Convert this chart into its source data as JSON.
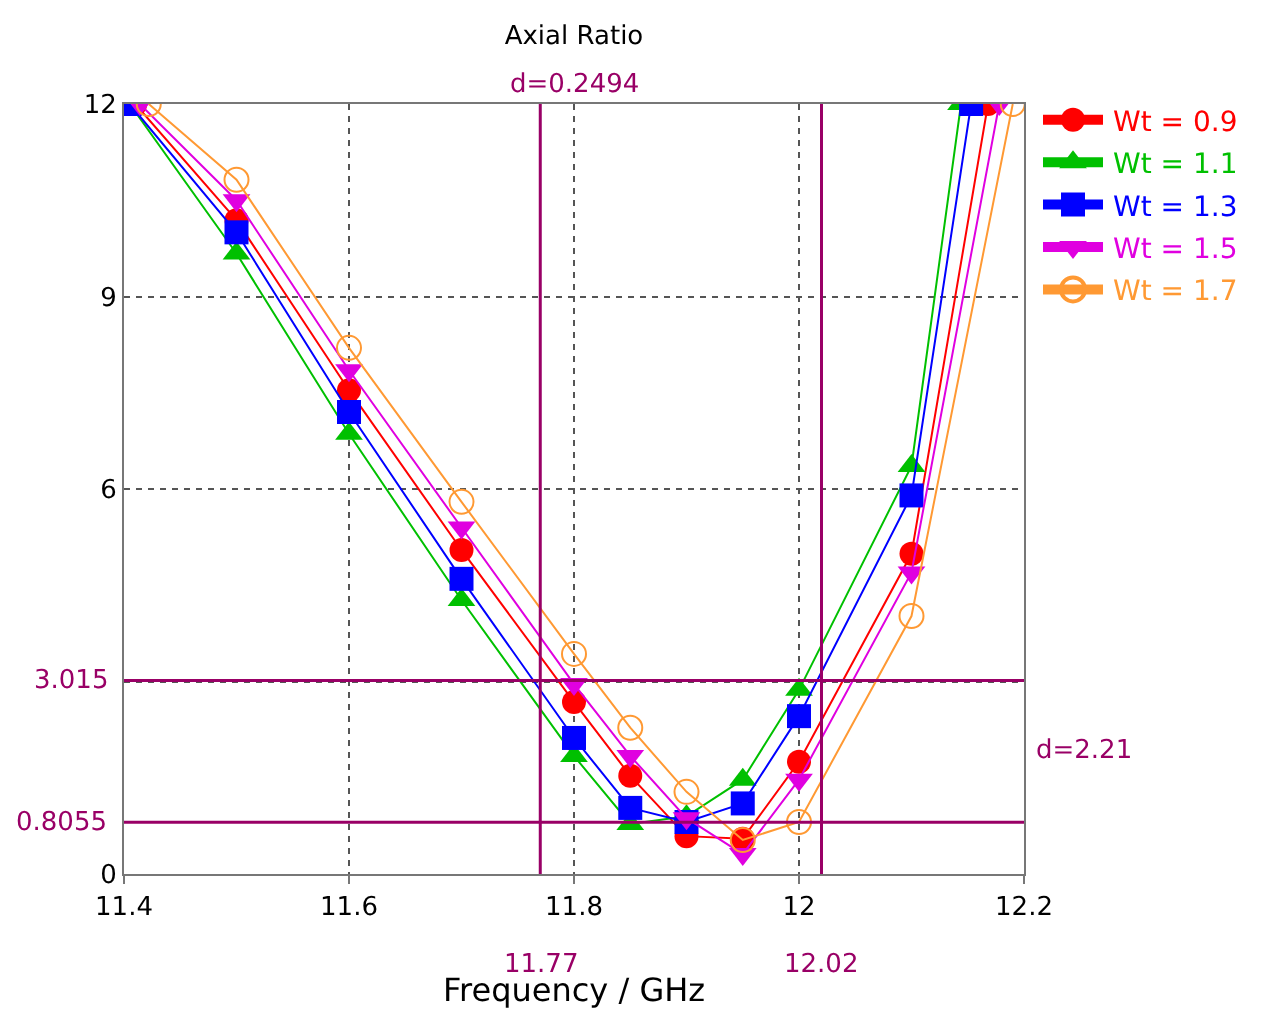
{
  "chart_data": {
    "type": "line",
    "title": "Axial Ratio",
    "xlabel": "Frequency / GHz",
    "xlim": [
      11.4,
      12.2
    ],
    "xticks": [
      11.4,
      11.6,
      11.8,
      {
        "value": 12,
        "label": "12"
      },
      12.2
    ],
    "ylim": [
      0,
      12
    ],
    "yticks": [
      0,
      {
        "value": 3,
        "label": null
      },
      6,
      9,
      12
    ],
    "grid": true,
    "legend": "top right",
    "line_style": "solid",
    "series": [
      {
        "name": "Wt = 0.9",
        "color": "#ff0000",
        "marker": "circle",
        "x": [
          11.41,
          11.5,
          11.6,
          11.7,
          11.8,
          11.85,
          11.9,
          11.95,
          12.0,
          12.1,
          12.168
        ],
        "values": [
          12,
          10.19,
          7.54,
          5.05,
          2.68,
          1.53,
          0.59,
          0.55,
          1.75,
          4.99,
          12
        ]
      },
      {
        "name": "Wt = 1.1",
        "color": "#00c000",
        "marker": "triangle",
        "x": [
          11.405,
          11.5,
          11.6,
          11.7,
          11.8,
          11.85,
          11.9,
          11.95,
          12.0,
          12.1,
          12.144
        ],
        "values": [
          12,
          9.67,
          6.86,
          4.27,
          1.84,
          0.78,
          0.9,
          1.47,
          2.87,
          6.36,
          12
        ]
      },
      {
        "name": "Wt = 1.3",
        "color": "#0000ff",
        "marker": "square",
        "x": [
          11.405,
          11.5,
          11.6,
          11.7,
          11.8,
          11.85,
          11.9,
          11.95,
          12.0,
          12.1,
          12.153
        ],
        "values": [
          12,
          10.0,
          7.2,
          4.6,
          2.12,
          1.03,
          0.81,
          1.1,
          2.46,
          5.9,
          12
        ]
      },
      {
        "name": "Wt = 1.5",
        "color": "#e000e0",
        "marker": "triangle-down",
        "x": [
          11.414,
          11.5,
          11.6,
          11.7,
          11.8,
          11.85,
          11.9,
          11.95,
          12.0,
          12.1,
          12.178
        ],
        "values": [
          12,
          10.5,
          7.85,
          5.4,
          2.96,
          1.84,
          0.87,
          0.31,
          1.47,
          4.7,
          12
        ]
      },
      {
        "name": "Wt = 1.7",
        "color": "#ff9933",
        "marker": "circle-open",
        "x": [
          11.422,
          11.5,
          11.6,
          11.7,
          11.8,
          11.85,
          11.9,
          11.95,
          12.0,
          12.1,
          12.19
        ],
        "values": [
          12,
          10.82,
          8.2,
          5.8,
          3.43,
          2.28,
          1.28,
          0.53,
          0.81,
          4.02,
          12
        ]
      }
    ],
    "ref_lines": [
      {
        "axis": "x",
        "value": 11.77,
        "label": "11.77",
        "color": "#990066"
      },
      {
        "axis": "x",
        "value": 12.02,
        "label": "12.02",
        "color": "#990066"
      },
      {
        "axis": "y",
        "value": 3.015,
        "label": "3.015",
        "color": "#990066"
      },
      {
        "axis": "y",
        "value": 0.8055,
        "label": "0.8055",
        "color": "#990066"
      }
    ],
    "annotations": [
      "d=0.2494",
      "d=2.21"
    ]
  }
}
